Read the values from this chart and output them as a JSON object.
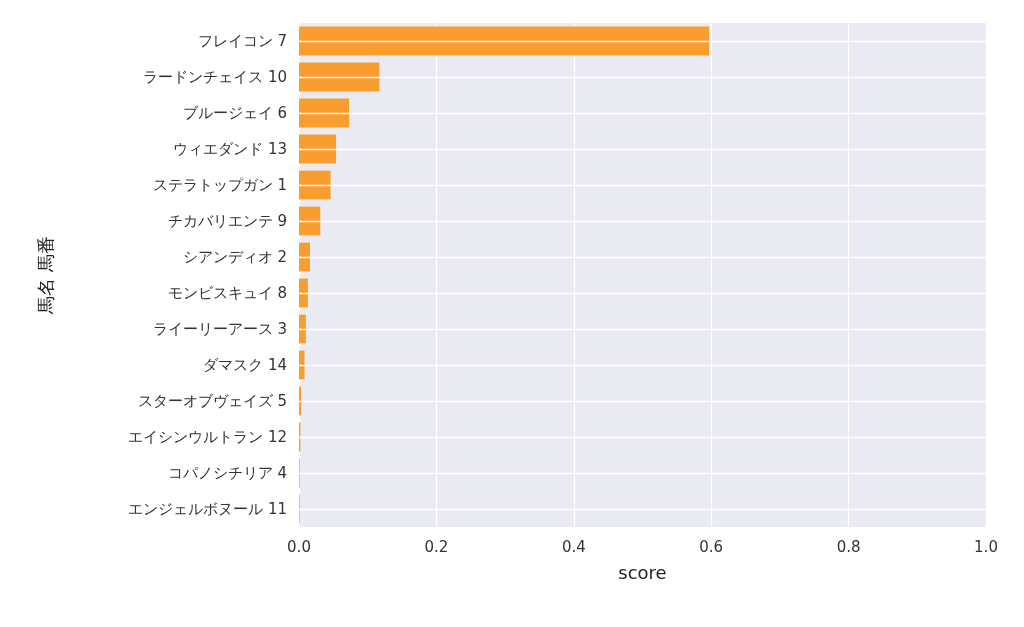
{
  "chart_data": {
    "type": "bar",
    "orientation": "horizontal",
    "xlabel": "score",
    "ylabel": "馬名 馬番",
    "categories": [
      "フレイコン 7",
      "ラードンチェイス 10",
      "ブルージェイ 6",
      "ウィエダンド 13",
      "ステラトップガン 1",
      "チカバリエンテ 9",
      "シアンディオ 2",
      "モンビスキュイ 8",
      "ライーリーアース 3",
      "ダマスク 14",
      "スターオブヴェイズ 5",
      "エイシンウルトラン 12",
      "コパノシチリア 4",
      "エンジェルボヌール 11"
    ],
    "values": [
      0.597,
      0.117,
      0.073,
      0.054,
      0.046,
      0.031,
      0.016,
      0.013,
      0.01,
      0.008,
      0.003,
      0.002,
      0.001,
      0.001
    ],
    "color": "#f99d2e",
    "xlim": [
      0,
      1
    ],
    "xticks": [
      {
        "value": 0,
        "label": "0.0"
      },
      {
        "value": 0.2,
        "label": "0.2"
      },
      {
        "value": 0.4,
        "label": "0.4"
      },
      {
        "value": 0.6,
        "label": "0.6"
      },
      {
        "value": 0.8,
        "label": "0.8"
      },
      {
        "value": 1,
        "label": "1.0"
      }
    ],
    "grid": true
  }
}
